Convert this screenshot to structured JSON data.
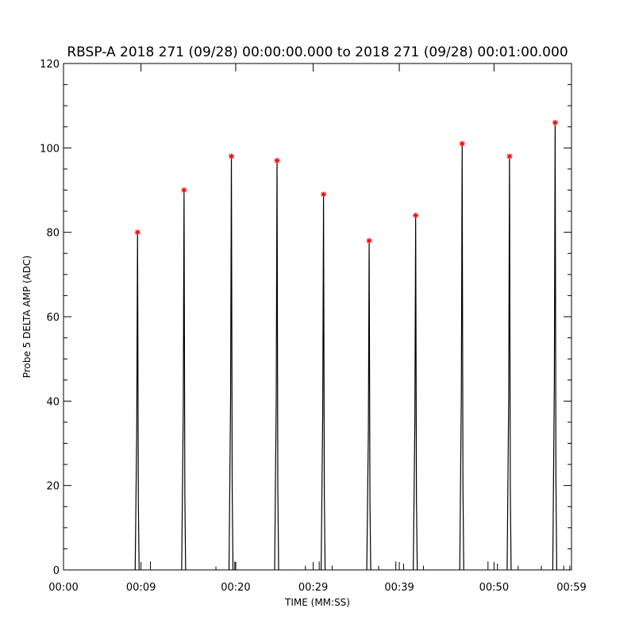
{
  "chart_data": {
    "type": "line",
    "title": "RBSP-A 2018 271 (09/28) 00:00:00.000 to 2018 271 (09/28) 00:01:00.000",
    "xlabel": "TIME (MM:SS)",
    "ylabel": "Probe 5 DELTA AMP (ADC)",
    "xlim": [
      0,
      59
    ],
    "ylim": [
      0,
      120
    ],
    "x_tick_values": [
      0,
      9,
      20,
      29,
      39,
      50,
      59
    ],
    "x_tick_labels": [
      "00:00",
      "00:09",
      "00:20",
      "00:29",
      "00:39",
      "00:50",
      "00:59"
    ],
    "y_tick_values": [
      0,
      20,
      40,
      60,
      80,
      100,
      120
    ],
    "y_tick_labels": [
      "0",
      "20",
      "40",
      "60",
      "80",
      "100",
      "120"
    ],
    "grid": false,
    "colors": {
      "line": "#000000",
      "peak_marker": "#ff0000"
    },
    "series": [
      {
        "values": [
          {
            "x": 8.6,
            "y": 80
          },
          {
            "x": 14.0,
            "y": 90
          },
          {
            "x": 19.5,
            "y": 98
          },
          {
            "x": 24.8,
            "y": 97
          },
          {
            "x": 30.2,
            "y": 89
          },
          {
            "x": 35.5,
            "y": 78
          },
          {
            "x": 40.9,
            "y": 84
          },
          {
            "x": 46.3,
            "y": 101
          },
          {
            "x": 51.8,
            "y": 98
          },
          {
            "x": 57.1,
            "y": 106
          }
        ]
      }
    ],
    "peak_markers": [
      {
        "x": 8.6,
        "y": 80
      },
      {
        "x": 14.0,
        "y": 90
      },
      {
        "x": 19.5,
        "y": 98
      },
      {
        "x": 24.8,
        "y": 97
      },
      {
        "x": 30.2,
        "y": 89
      },
      {
        "x": 35.5,
        "y": 78
      },
      {
        "x": 40.9,
        "y": 84
      },
      {
        "x": 46.3,
        "y": 101
      },
      {
        "x": 51.8,
        "y": 98
      },
      {
        "x": 57.1,
        "y": 106
      }
    ],
    "noise_segments": [
      {
        "x": 10.1,
        "y": 2
      },
      {
        "x": 17.7,
        "y": 0.8
      },
      {
        "x": 19.9,
        "y": 2
      },
      {
        "x": 28.1,
        "y": 1
      },
      {
        "x": 29.7,
        "y": 2
      },
      {
        "x": 31.2,
        "y": 1
      },
      {
        "x": 36.6,
        "y": 1
      },
      {
        "x": 38.6,
        "y": 2
      },
      {
        "x": 39.5,
        "y": 1.5
      },
      {
        "x": 41.8,
        "y": 1
      },
      {
        "x": 49.3,
        "y": 2
      },
      {
        "x": 50.4,
        "y": 1.5
      },
      {
        "x": 52.8,
        "y": 1
      },
      {
        "x": 55.5,
        "y": 1
      },
      {
        "x": 58.1,
        "y": 1
      },
      {
        "x": 58.8,
        "y": 1
      }
    ]
  }
}
